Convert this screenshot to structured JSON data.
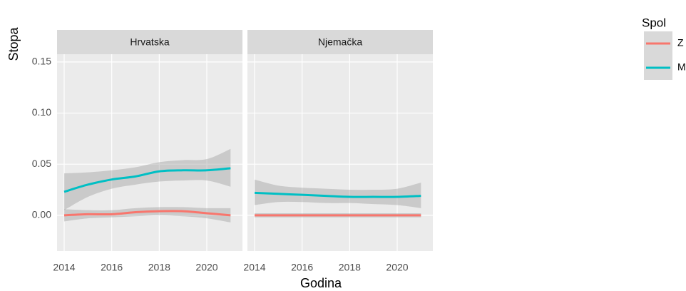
{
  "chart_data": [
    {
      "type": "line",
      "title": "Hrvatska",
      "xlabel": "Godina",
      "ylabel": "Stopa",
      "legend_title": "Spol",
      "x": [
        2014,
        2015,
        2016,
        2017,
        2018,
        2019,
        2020,
        2021
      ],
      "series": [
        {
          "name": "Z",
          "color": "#f8766d",
          "values": [
            0.0,
            0.001,
            0.001,
            0.003,
            0.004,
            0.004,
            0.002,
            0.0
          ],
          "lower": [
            -0.006,
            -0.003,
            -0.002,
            -0.001,
            0.0,
            -0.001,
            -0.003,
            -0.007
          ],
          "upper": [
            0.006,
            0.005,
            0.005,
            0.007,
            0.008,
            0.008,
            0.007,
            0.007
          ]
        },
        {
          "name": "M",
          "color": "#00bfc4",
          "values": [
            0.023,
            0.03,
            0.035,
            0.038,
            0.043,
            0.044,
            0.044,
            0.046
          ],
          "lower": [
            0.005,
            0.018,
            0.026,
            0.03,
            0.033,
            0.034,
            0.034,
            0.028
          ],
          "upper": [
            0.041,
            0.042,
            0.044,
            0.047,
            0.052,
            0.054,
            0.055,
            0.065
          ]
        }
      ],
      "xlim": [
        2013.7,
        2021.5
      ],
      "ylim": [
        -0.035,
        0.1576
      ],
      "xticks": [
        2014,
        2016,
        2018,
        2020
      ],
      "yticks": [
        {
          "value": 0,
          "label": "0.00"
        },
        {
          "value": 0.05,
          "label": "0.05"
        },
        {
          "value": 0.1,
          "label": "0.10"
        },
        {
          "value": 0.15,
          "label": "0.15"
        }
      ],
      "grid": true
    },
    {
      "type": "line",
      "title": "Njemačka",
      "x": [
        2014,
        2015,
        2016,
        2017,
        2018,
        2019,
        2020,
        2021
      ],
      "series": [
        {
          "name": "Z",
          "color": "#f8766d",
          "values": [
            0.0,
            0.0,
            0.0,
            0.0,
            0.0,
            0.0,
            0.0,
            0.0
          ],
          "lower": [
            -0.002,
            -0.002,
            -0.002,
            -0.002,
            -0.002,
            -0.002,
            -0.002,
            -0.002
          ],
          "upper": [
            0.002,
            0.002,
            0.002,
            0.002,
            0.002,
            0.002,
            0.002,
            0.002
          ]
        },
        {
          "name": "M",
          "color": "#00bfc4",
          "values": [
            0.022,
            0.021,
            0.02,
            0.019,
            0.018,
            0.018,
            0.018,
            0.019
          ],
          "lower": [
            0.01,
            0.013,
            0.013,
            0.012,
            0.012,
            0.011,
            0.01,
            0.007
          ],
          "upper": [
            0.035,
            0.029,
            0.027,
            0.026,
            0.025,
            0.025,
            0.026,
            0.032
          ]
        }
      ],
      "xlim": [
        2013.7,
        2021.5
      ],
      "ylim": [
        -0.035,
        0.1576
      ],
      "xticks": [
        2014,
        2016,
        2018,
        2020
      ],
      "yticks": [
        0,
        0.05,
        0.1,
        0.15
      ],
      "grid": true
    }
  ]
}
